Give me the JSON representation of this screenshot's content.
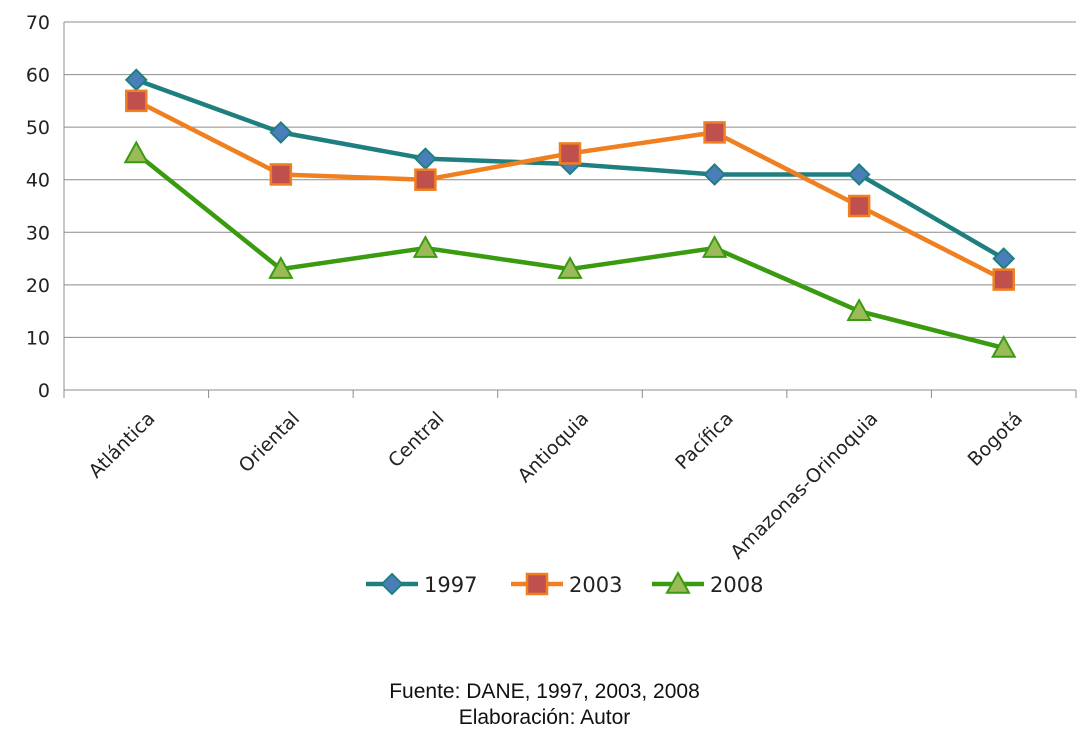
{
  "chart_data": {
    "type": "line",
    "categories": [
      "Atlántica",
      "Oriental",
      "Central",
      "Antioquia",
      "Pacífica",
      "Amazonas-Orinoquia",
      "Bogotá"
    ],
    "series": [
      {
        "name": "1997",
        "values": [
          59,
          49,
          44,
          43,
          41,
          41,
          25
        ],
        "color": "#1F7F7F",
        "marker": "diamond",
        "marker_color": "#4A7EBB"
      },
      {
        "name": "2003",
        "values": [
          55,
          41,
          40,
          45,
          49,
          35,
          21
        ],
        "color": "#F07F20",
        "marker": "square",
        "marker_color": "#C0504D"
      },
      {
        "name": "2008",
        "values": [
          45,
          23,
          27,
          23,
          27,
          15,
          8
        ],
        "color": "#3A9A10",
        "marker": "triangle",
        "marker_color": "#9BBB59"
      }
    ],
    "title": "",
    "xlabel": "",
    "ylabel": "",
    "ylim": [
      0,
      70
    ],
    "yticks": [
      0,
      10,
      20,
      30,
      40,
      50,
      60,
      70
    ],
    "grid": true,
    "legend_position": "bottom"
  },
  "footer": {
    "source": "Fuente: DANE, 1997, 2003, 2008",
    "author": "Elaboración: Autor"
  }
}
